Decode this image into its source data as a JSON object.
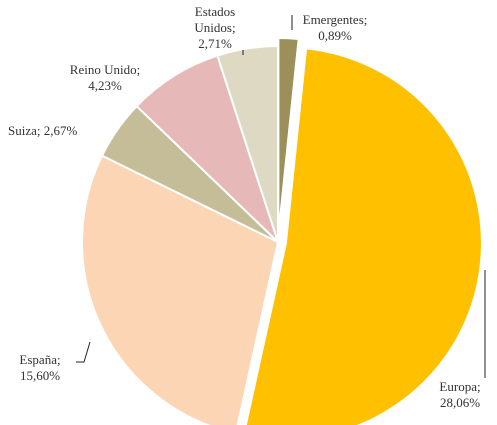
{
  "chart_data": {
    "type": "pie",
    "categories": [
      "Emergentes;",
      "Europa;",
      "España;",
      "Suiza;",
      "Reino Unido;",
      "Estados Unidos;"
    ],
    "values": [
      0.89,
      28.06,
      15.6,
      2.67,
      4.23,
      2.71
    ],
    "value_labels": [
      "0,89%",
      "28,06%",
      "15,60%",
      "2,67%",
      "4,23%",
      "2,71%"
    ],
    "colors": [
      "#9b8f5a",
      "#ffc000",
      "#fcd5b5",
      "#c4bd97",
      "#e6b9b8",
      "#ddd9c3"
    ],
    "explode": [
      true,
      true,
      false,
      false,
      false,
      false
    ]
  }
}
